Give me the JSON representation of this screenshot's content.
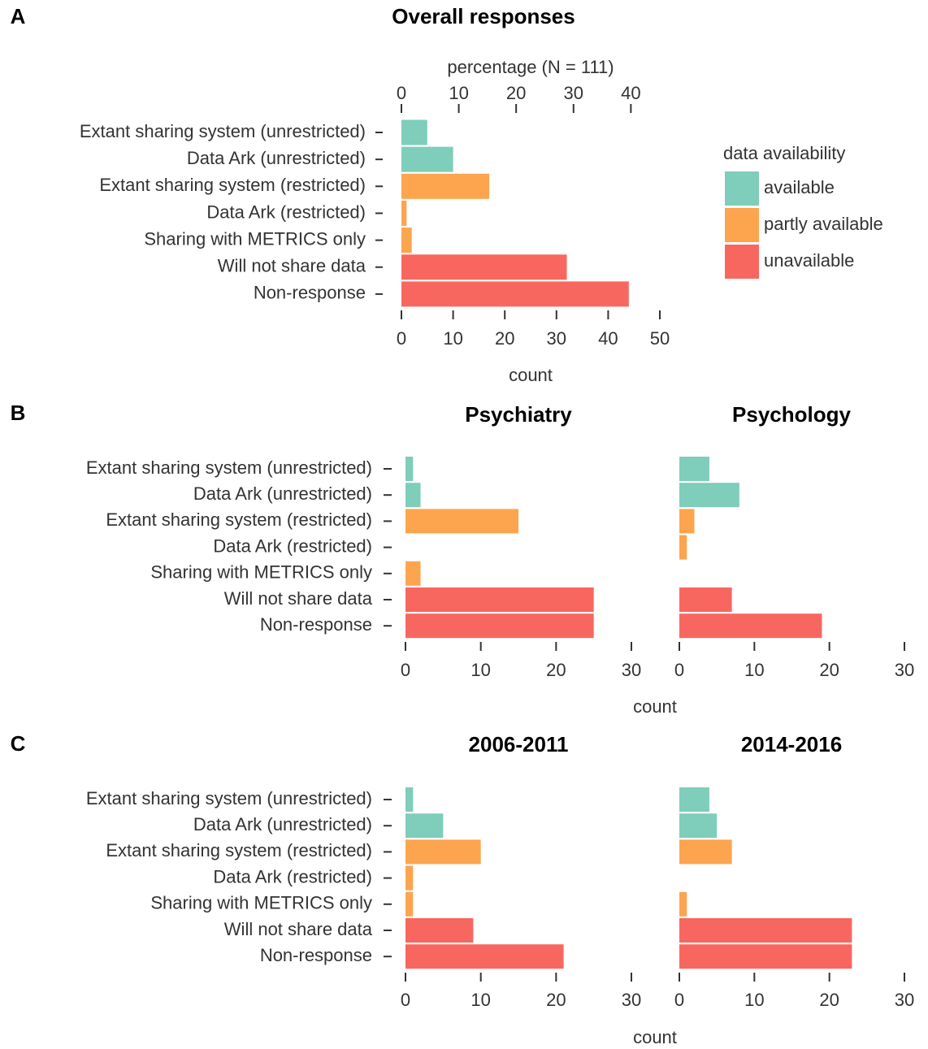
{
  "chart_data": [
    {
      "type": "bar",
      "panel_label": "A",
      "title": "Overall responses",
      "categories": [
        "Extant sharing system (unrestricted)",
        "Data Ark (unrestricted)",
        "Extant sharing system (restricted)",
        "Data Ark (restricted)",
        "Sharing with METRICS only",
        "Will not share data",
        "Non-response"
      ],
      "values": [
        5,
        10,
        17,
        1,
        2,
        32,
        44
      ],
      "colors": [
        "#7fcdbb",
        "#7fcdbb",
        "#fda44f",
        "#fda44f",
        "#fda44f",
        "#f8675f",
        "#f8675f"
      ],
      "xlim": [
        0,
        50
      ],
      "xticks": [
        0,
        10,
        20,
        30,
        40,
        50
      ],
      "xlabel": "count",
      "x2lim": [
        0,
        45.05
      ],
      "x2ticks": [
        0,
        10,
        20,
        30,
        40
      ],
      "x2label": "percentage (N = 111)",
      "legend": {
        "title": "data availability",
        "entries": [
          {
            "name": "available",
            "color": "#7fcdbb"
          },
          {
            "name": "partly available",
            "color": "#fda44f"
          },
          {
            "name": "unavailable",
            "color": "#f8675f"
          }
        ]
      }
    },
    {
      "type": "bar",
      "panel_label": "B",
      "title": "Psychiatry",
      "categories": [
        "Extant sharing system (unrestricted)",
        "Data Ark (unrestricted)",
        "Extant sharing system (restricted)",
        "Data Ark (restricted)",
        "Sharing with METRICS only",
        "Will not share data",
        "Non-response"
      ],
      "values": [
        1,
        2,
        15,
        0,
        2,
        25,
        25
      ],
      "colors": [
        "#7fcdbb",
        "#7fcdbb",
        "#fda44f",
        "#fda44f",
        "#fda44f",
        "#f8675f",
        "#f8675f"
      ],
      "xlim": [
        0,
        30
      ],
      "xticks": [
        0,
        10,
        20,
        30
      ],
      "xlabel": "count"
    },
    {
      "type": "bar",
      "title": "Psychology",
      "values": [
        4,
        8,
        2,
        1,
        0,
        7,
        19
      ],
      "colors": [
        "#7fcdbb",
        "#7fcdbb",
        "#fda44f",
        "#fda44f",
        "#fda44f",
        "#f8675f",
        "#f8675f"
      ],
      "xlim": [
        0,
        30
      ],
      "xticks": [
        0,
        10,
        20,
        30
      ]
    },
    {
      "type": "bar",
      "panel_label": "C",
      "title": "2006-2011",
      "categories": [
        "Extant sharing system (unrestricted)",
        "Data Ark (unrestricted)",
        "Extant sharing system (restricted)",
        "Data Ark (restricted)",
        "Sharing with METRICS only",
        "Will not share data",
        "Non-response"
      ],
      "values": [
        1,
        5,
        10,
        1,
        1,
        9,
        21
      ],
      "colors": [
        "#7fcdbb",
        "#7fcdbb",
        "#fda44f",
        "#fda44f",
        "#fda44f",
        "#f8675f",
        "#f8675f"
      ],
      "xlim": [
        0,
        30
      ],
      "xticks": [
        0,
        10,
        20,
        30
      ],
      "xlabel": "count"
    },
    {
      "type": "bar",
      "title": "2014-2016",
      "values": [
        4,
        5,
        7,
        0,
        1,
        23,
        23
      ],
      "colors": [
        "#7fcdbb",
        "#7fcdbb",
        "#fda44f",
        "#fda44f",
        "#fda44f",
        "#f8675f",
        "#f8675f"
      ],
      "xlim": [
        0,
        30
      ],
      "xticks": [
        0,
        10,
        20,
        30
      ]
    }
  ]
}
